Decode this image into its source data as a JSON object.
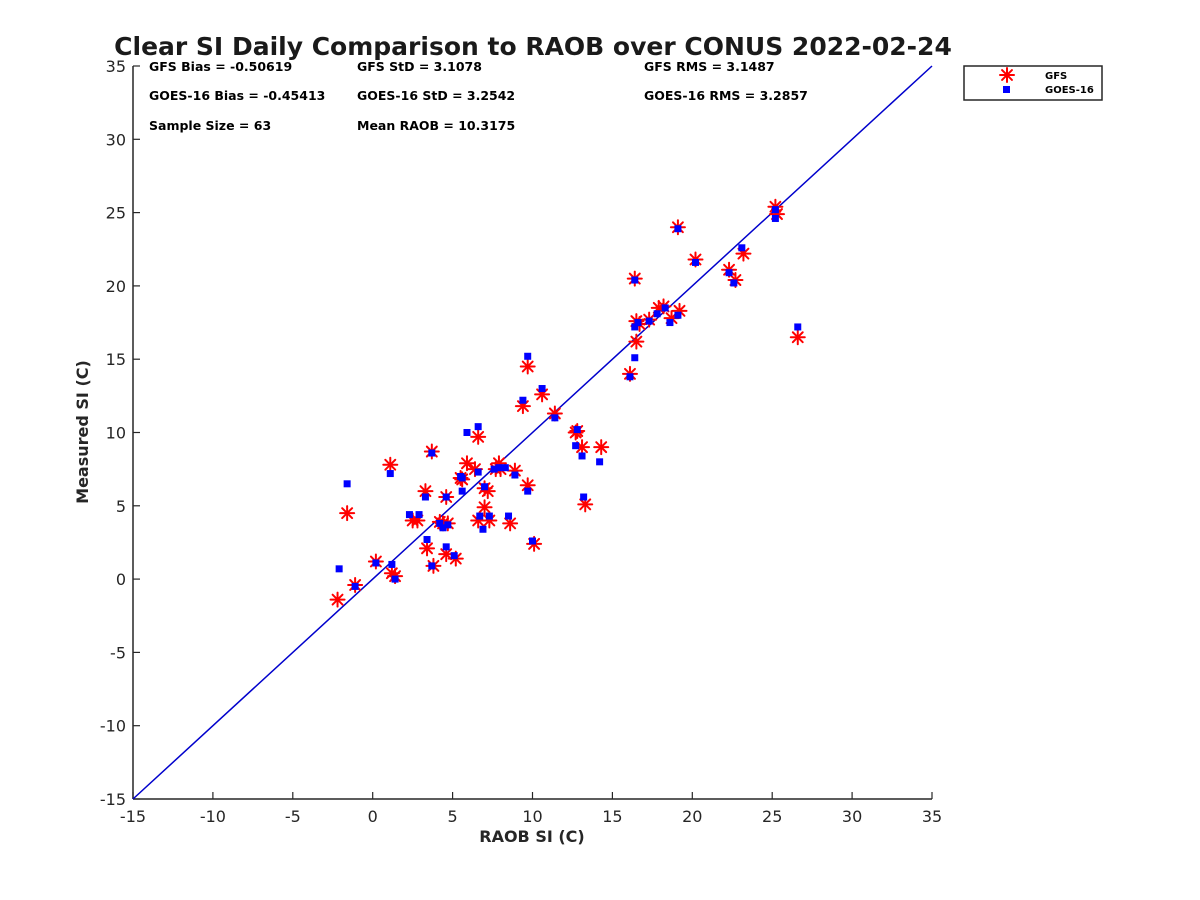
{
  "chart_data": {
    "type": "scatter",
    "title": "Clear SI Daily Comparison to RAOB over CONUS 2022-02-24",
    "xlabel": "RAOB SI (C)",
    "ylabel": "Measured SI (C)",
    "xlim": [
      -15,
      35
    ],
    "ylim": [
      -15,
      35
    ],
    "xticks": [
      "-15",
      "-10",
      "-5",
      "0",
      "5",
      "10",
      "15",
      "20",
      "25",
      "30",
      "35"
    ],
    "yticks": [
      "-15",
      "-10",
      "-5",
      "0",
      "5",
      "10",
      "15",
      "20",
      "25",
      "30",
      "35"
    ],
    "grid": false,
    "legend_position": "outside-top-right",
    "reference_line": {
      "name": "1:1",
      "color": "#0000cc",
      "from": [
        -15,
        -15
      ],
      "to": [
        35,
        35
      ]
    },
    "stats": {
      "gfs_bias": "GFS Bias = -0.50619",
      "gfs_std": "GFS StD = 3.1078",
      "gfs_rms": "GFS RMS = 3.1487",
      "goes_bias": "GOES-16 Bias = -0.45413",
      "goes_std": "GOES-16 StD = 3.2542",
      "goes_rms": "GOES-16 RMS = 3.2857",
      "sample_size": "Sample Size = 63",
      "mean_raob": "Mean RAOB = 10.3175"
    },
    "series": [
      {
        "name": "GFS",
        "marker": "asterisk",
        "color": "#ff0000",
        "points": [
          [
            -2.2,
            -1.4
          ],
          [
            -1.1,
            -0.4
          ],
          [
            -1.6,
            4.5
          ],
          [
            0.2,
            1.2
          ],
          [
            1.2,
            0.4
          ],
          [
            1.4,
            0.2
          ],
          [
            1.1,
            7.8
          ],
          [
            2.5,
            4.0
          ],
          [
            2.8,
            4.0
          ],
          [
            3.4,
            2.1
          ],
          [
            3.3,
            6.0
          ],
          [
            3.7,
            8.7
          ],
          [
            3.8,
            0.9
          ],
          [
            4.4,
            3.8
          ],
          [
            4.6,
            1.7
          ],
          [
            4.7,
            3.8
          ],
          [
            4.6,
            5.6
          ],
          [
            5.2,
            1.4
          ],
          [
            5.6,
            6.8
          ],
          [
            5.9,
            7.9
          ],
          [
            6.4,
            7.5
          ],
          [
            6.6,
            9.7
          ],
          [
            6.6,
            4.0
          ],
          [
            7.0,
            4.9
          ],
          [
            7.2,
            6.0
          ],
          [
            7.3,
            4.0
          ],
          [
            7.7,
            7.5
          ],
          [
            7.9,
            7.9
          ],
          [
            8.6,
            3.8
          ],
          [
            8.9,
            7.4
          ],
          [
            9.4,
            11.8
          ],
          [
            9.7,
            14.5
          ],
          [
            9.7,
            6.4
          ],
          [
            10.1,
            2.4
          ],
          [
            10.6,
            12.6
          ],
          [
            11.4,
            11.3
          ],
          [
            12.8,
            10.1
          ],
          [
            13.1,
            9.0
          ],
          [
            13.3,
            5.1
          ],
          [
            14.3,
            9.0
          ],
          [
            16.1,
            14.0
          ],
          [
            16.4,
            20.5
          ],
          [
            16.5,
            17.6
          ],
          [
            16.5,
            16.2
          ],
          [
            17.3,
            17.7
          ],
          [
            17.9,
            18.5
          ],
          [
            18.2,
            18.6
          ],
          [
            18.7,
            17.8
          ],
          [
            19.2,
            18.3
          ],
          [
            19.1,
            24.0
          ],
          [
            20.2,
            21.8
          ],
          [
            22.3,
            21.1
          ],
          [
            22.7,
            20.4
          ],
          [
            23.2,
            22.2
          ],
          [
            25.2,
            25.4
          ],
          [
            25.3,
            24.9
          ],
          [
            26.6,
            16.5
          ],
          [
            4.2,
            3.9
          ],
          [
            7.0,
            6.2
          ],
          [
            12.7,
            10.0
          ],
          [
            16.7,
            17.4
          ],
          [
            8.0,
            7.5
          ],
          [
            5.5,
            6.9
          ]
        ]
      },
      {
        "name": "GOES-16",
        "marker": "square",
        "color": "#0000ff",
        "points": [
          [
            -2.1,
            0.7
          ],
          [
            -1.1,
            -0.5
          ],
          [
            -1.6,
            6.5
          ],
          [
            0.2,
            1.1
          ],
          [
            1.1,
            7.2
          ],
          [
            1.2,
            1.0
          ],
          [
            1.4,
            0.0
          ],
          [
            2.3,
            4.4
          ],
          [
            2.9,
            4.4
          ],
          [
            3.3,
            5.6
          ],
          [
            3.4,
            2.7
          ],
          [
            3.7,
            8.6
          ],
          [
            3.7,
            0.9
          ],
          [
            4.2,
            3.8
          ],
          [
            4.4,
            3.5
          ],
          [
            4.6,
            2.2
          ],
          [
            4.6,
            5.6
          ],
          [
            5.1,
            1.6
          ],
          [
            5.6,
            6.0
          ],
          [
            5.6,
            6.9
          ],
          [
            5.9,
            10.0
          ],
          [
            6.6,
            10.4
          ],
          [
            6.6,
            7.3
          ],
          [
            6.7,
            4.3
          ],
          [
            6.9,
            3.4
          ],
          [
            7.0,
            6.3
          ],
          [
            7.3,
            4.3
          ],
          [
            7.9,
            7.6
          ],
          [
            8.5,
            4.3
          ],
          [
            8.9,
            7.1
          ],
          [
            9.4,
            12.2
          ],
          [
            9.7,
            15.2
          ],
          [
            9.7,
            6.0
          ],
          [
            10.0,
            2.6
          ],
          [
            10.6,
            13.0
          ],
          [
            11.4,
            11.0
          ],
          [
            12.7,
            9.1
          ],
          [
            13.1,
            8.4
          ],
          [
            13.2,
            5.6
          ],
          [
            14.2,
            8.0
          ],
          [
            16.1,
            13.8
          ],
          [
            16.4,
            20.4
          ],
          [
            16.4,
            17.2
          ],
          [
            16.4,
            15.1
          ],
          [
            17.3,
            17.6
          ],
          [
            17.8,
            18.1
          ],
          [
            18.3,
            18.5
          ],
          [
            18.6,
            17.5
          ],
          [
            19.1,
            18.0
          ],
          [
            19.1,
            23.9
          ],
          [
            20.2,
            21.6
          ],
          [
            22.3,
            20.9
          ],
          [
            22.6,
            20.2
          ],
          [
            23.1,
            22.6
          ],
          [
            25.2,
            25.2
          ],
          [
            25.2,
            24.6
          ],
          [
            26.6,
            17.2
          ],
          [
            4.7,
            3.7
          ],
          [
            7.6,
            7.5
          ],
          [
            12.8,
            10.2
          ],
          [
            16.6,
            17.5
          ],
          [
            8.3,
            7.6
          ],
          [
            5.5,
            7.0
          ]
        ]
      }
    ]
  }
}
